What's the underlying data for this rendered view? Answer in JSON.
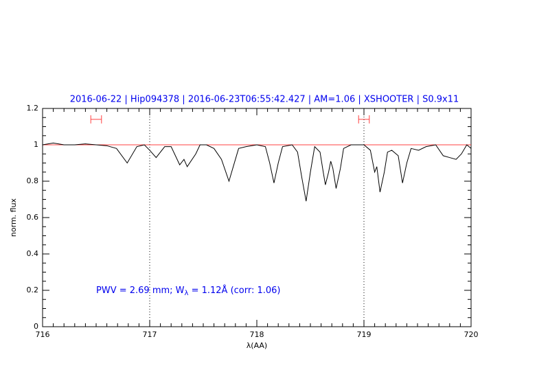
{
  "chart_data": {
    "type": "line",
    "title": "2016-06-22 | Hip094378 | 2016-06-23T06:55:42.427 | AM=1.06 | XSHOOTER | S0.9x11",
    "xlabel": "λ(AA)",
    "ylabel": "norm. flux",
    "annotation": [
      "PWV = 2.69 mm; W",
      "λ",
      " = 1.12Å (corr: 1.06)"
    ],
    "xlim": [
      716,
      720
    ],
    "ylim": [
      0,
      1.2
    ],
    "xticks": [
      716,
      717,
      718,
      719,
      720
    ],
    "yticks": [
      0,
      0.2,
      0.4,
      0.6,
      0.8,
      1,
      1.2
    ],
    "xminorticks": [
      716.1,
      716.2,
      716.3,
      716.4,
      716.5,
      716.6,
      716.7,
      716.8,
      716.9,
      717.1,
      717.2,
      717.3,
      717.4,
      717.5,
      717.6,
      717.7,
      717.8,
      717.9,
      718.1,
      718.2,
      718.3,
      718.4,
      718.5,
      718.6,
      718.7,
      718.8,
      718.9,
      719.1,
      719.2,
      719.3,
      719.4,
      719.5,
      719.6,
      719.7,
      719.8,
      719.9
    ],
    "yminorticks": [
      0.05,
      0.1,
      0.15,
      0.25,
      0.3,
      0.35,
      0.45,
      0.5,
      0.55,
      0.65,
      0.7,
      0.75,
      0.85,
      0.9,
      0.95,
      1.05,
      1.1,
      1.15
    ],
    "hline": 1,
    "hline_color": "#ff4040",
    "vlines": [
      717,
      719
    ],
    "ranges": [
      [
        716.45,
        716.55
      ],
      [
        718.95,
        719.05
      ]
    ],
    "range_y": 1.14,
    "range_color": "#ff4040",
    "series": [
      {
        "color": "#000000",
        "x": [
          716.0,
          716.1,
          716.2,
          716.3,
          716.4,
          716.5,
          716.6,
          716.69,
          716.79,
          716.88,
          716.95,
          717.0,
          717.06,
          717.14,
          717.2,
          717.28,
          717.32,
          717.35,
          717.43,
          717.47,
          717.53,
          717.6,
          717.67,
          717.74,
          717.78,
          717.83,
          717.9,
          718.0,
          718.08,
          718.12,
          718.16,
          718.2,
          718.24,
          718.33,
          718.38,
          718.42,
          718.46,
          718.5,
          718.54,
          718.59,
          718.62,
          718.64,
          718.67,
          718.69,
          718.71,
          718.74,
          718.78,
          718.81,
          718.88,
          719.0,
          719.06,
          719.1,
          719.12,
          719.15,
          719.19,
          719.22,
          719.26,
          719.32,
          719.36,
          719.4,
          719.44,
          719.51,
          719.58,
          719.67,
          719.74,
          719.8,
          719.86,
          719.91,
          719.96,
          720.0
        ],
        "values": [
          1.0,
          1.01,
          1.0,
          1.0,
          1.005,
          1.0,
          0.995,
          0.98,
          0.9,
          0.99,
          1.0,
          0.97,
          0.93,
          0.99,
          0.99,
          0.89,
          0.92,
          0.88,
          0.95,
          1.0,
          1.0,
          0.98,
          0.92,
          0.8,
          0.88,
          0.98,
          0.99,
          1.0,
          0.99,
          0.9,
          0.79,
          0.9,
          0.99,
          1.0,
          0.96,
          0.82,
          0.69,
          0.85,
          0.99,
          0.96,
          0.85,
          0.78,
          0.85,
          0.91,
          0.87,
          0.76,
          0.87,
          0.98,
          1.0,
          1.0,
          0.97,
          0.85,
          0.88,
          0.74,
          0.85,
          0.96,
          0.97,
          0.94,
          0.79,
          0.9,
          0.98,
          0.97,
          0.99,
          1.0,
          0.94,
          0.93,
          0.92,
          0.95,
          1.0,
          0.98
        ]
      }
    ]
  }
}
